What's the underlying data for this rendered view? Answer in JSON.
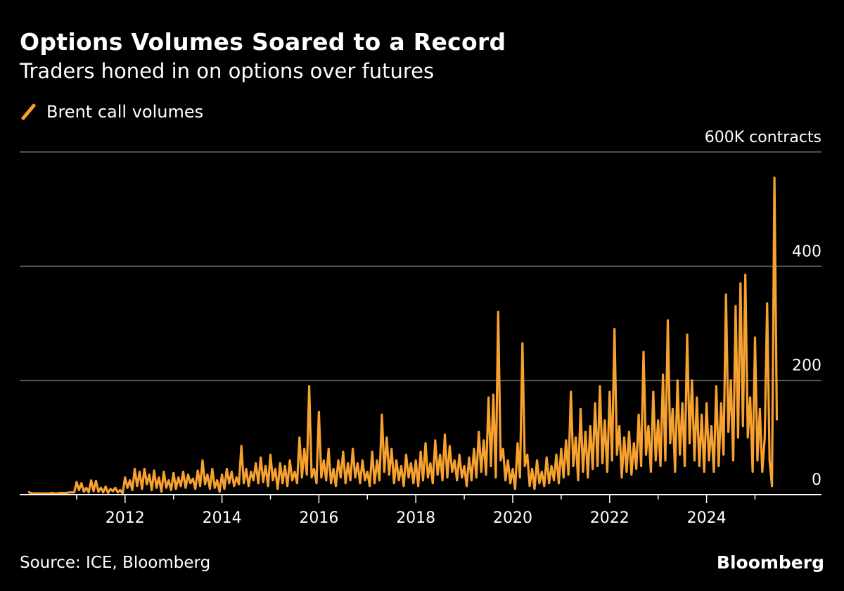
{
  "title": "Options Volumes Soared to a Record",
  "subtitle": "Traders honed in on options over futures",
  "source": "Source: ICE, Bloomberg",
  "logo": "Bloomberg",
  "colors": {
    "series": "#f7a12f",
    "grid": "#6b6b6b",
    "axis": "#ffffff",
    "background": "#000000"
  },
  "chart_data": {
    "type": "line",
    "title": "Options Volumes Soared to a Record",
    "subtitle": "Traders honed in on options over futures",
    "ylabel": "",
    "yunit": "contracts",
    "ylim": [
      0,
      600
    ],
    "xlim": [
      2010,
      2026.4
    ],
    "grid": true,
    "legend_placement": "top-left",
    "y_ticks": [
      {
        "value": 0,
        "label": "0"
      },
      {
        "value": 200,
        "label": "200"
      },
      {
        "value": 400,
        "label": "400"
      },
      {
        "value": 600,
        "label": "600K contracts"
      }
    ],
    "x_ticks": [
      {
        "value": 2012,
        "label": "2012"
      },
      {
        "value": 2014,
        "label": "2014"
      },
      {
        "value": 2016,
        "label": "2016"
      },
      {
        "value": 2018,
        "label": "2018"
      },
      {
        "value": 2020,
        "label": "2020"
      },
      {
        "value": 2022,
        "label": "2022"
      },
      {
        "value": 2024,
        "label": "2024"
      }
    ],
    "x_minor_ticks": [
      2011,
      2013,
      2015,
      2017,
      2019,
      2021,
      2023,
      2025
    ],
    "series": [
      {
        "name": "Brent call volumes",
        "color": "#f7a12f",
        "values_by_year": {
          "2010": [
            5,
            3,
            2,
            2,
            2,
            2,
            2,
            2,
            2,
            2,
            3,
            2,
            2,
            3,
            3,
            3,
            3,
            4,
            4,
            4
          ],
          "2011": [
            22,
            8,
            20,
            5,
            12,
            4,
            25,
            6,
            24,
            5,
            12,
            4,
            14,
            3,
            10,
            6,
            12,
            4,
            8,
            2
          ],
          "2012": [
            30,
            12,
            25,
            8,
            45,
            15,
            40,
            10,
            45,
            18,
            35,
            8,
            42,
            12,
            30,
            5,
            40,
            12,
            25,
            8
          ],
          "2013": [
            38,
            10,
            30,
            15,
            40,
            12,
            35,
            20,
            28,
            10,
            42,
            15,
            60,
            18,
            35,
            10,
            45,
            12,
            25,
            5
          ],
          "2014": [
            35,
            10,
            45,
            20,
            40,
            15,
            30,
            18,
            85,
            20,
            45,
            15,
            40,
            25,
            55,
            20,
            65,
            22,
            50,
            15
          ],
          "2015": [
            70,
            25,
            45,
            10,
            55,
            20,
            50,
            15,
            60,
            25,
            40,
            20,
            100,
            30,
            80,
            35,
            190,
            30,
            45,
            20
          ],
          "2016": [
            145,
            30,
            60,
            25,
            80,
            20,
            45,
            15,
            60,
            30,
            75,
            20,
            55,
            25,
            80,
            30,
            55,
            20,
            60,
            25
          ],
          "2017": [
            40,
            15,
            75,
            20,
            60,
            25,
            140,
            40,
            100,
            35,
            80,
            20,
            60,
            25,
            50,
            15,
            70,
            30,
            55,
            20
          ],
          "2018": [
            60,
            15,
            75,
            25,
            90,
            30,
            55,
            20,
            95,
            35,
            70,
            25,
            105,
            30,
            85,
            40,
            60,
            25,
            70,
            30
          ],
          "2019": [
            50,
            15,
            65,
            25,
            80,
            30,
            110,
            40,
            95,
            35,
            170,
            50,
            175,
            30,
            320,
            60,
            80,
            25,
            60,
            20
          ],
          "2020": [
            45,
            10,
            90,
            30,
            265,
            50,
            70,
            15,
            45,
            10,
            60,
            20,
            40,
            15,
            65,
            20,
            50,
            25,
            70,
            20
          ],
          "2021": [
            80,
            30,
            95,
            35,
            180,
            50,
            100,
            25,
            150,
            40,
            110,
            30,
            120,
            45,
            160,
            50,
            190,
            55,
            130,
            40
          ],
          "2022": [
            180,
            60,
            290,
            70,
            120,
            30,
            100,
            40,
            110,
            35,
            90,
            45,
            140,
            50,
            250,
            70,
            120,
            40,
            180,
            60
          ],
          "2023": [
            130,
            50,
            210,
            60,
            305,
            90,
            150,
            40,
            200,
            70,
            160,
            50,
            280,
            90,
            200,
            60,
            170,
            50,
            140,
            40
          ],
          "2024": [
            160,
            60,
            120,
            40,
            190,
            50,
            160,
            70,
            350,
            110,
            200,
            60,
            330,
            100,
            370,
            120,
            385,
            100,
            170,
            40
          ],
          "2025": [
            275,
            60,
            150,
            40,
            100,
            335,
            60,
            15,
            555,
            130
          ]
        }
      }
    ]
  }
}
